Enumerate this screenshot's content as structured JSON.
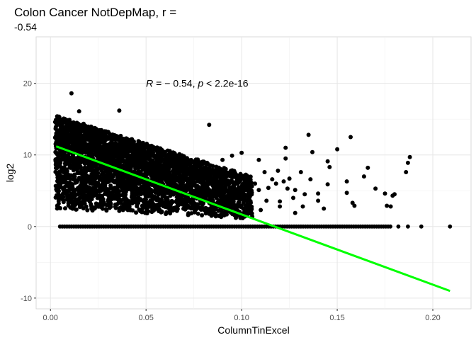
{
  "chart_data": {
    "type": "scatter",
    "title_line1": "Colon Cancer NotDepMap, r =",
    "title_line2": "-0.54",
    "xlabel": "ColumnTinExcel",
    "ylabel": "log2",
    "xlim": [
      -0.0075,
      0.22
    ],
    "ylim": [
      -11.5,
      26.5
    ],
    "x_ticks": [
      0.0,
      0.05,
      0.1,
      0.15,
      0.2
    ],
    "x_tick_labels": [
      "0.00",
      "0.05",
      "0.10",
      "0.15",
      "0.20"
    ],
    "y_ticks": [
      -10,
      0,
      10,
      20
    ],
    "y_tick_labels": [
      "-10",
      "0",
      "10",
      "20"
    ],
    "grid": true,
    "annotation": {
      "x": 0.05,
      "y": 20,
      "r_symbol": "R",
      "r_text": " = − 0.54, ",
      "p_symbol": "p",
      "p_text": " < 2.2e-16"
    },
    "fit_line": {
      "color": "#00ff00",
      "x": [
        0.003,
        0.209
      ],
      "y": [
        11.2,
        -9.0
      ]
    },
    "point_color": "#000000",
    "points": [
      [
        0.011,
        18.6
      ],
      [
        0.015,
        16.1
      ],
      [
        0.036,
        16.2
      ],
      [
        0.083,
        14.2
      ],
      [
        0.135,
        12.8
      ],
      [
        0.157,
        12.5
      ],
      [
        0.123,
        11.0
      ],
      [
        0.137,
        10.4
      ],
      [
        0.15,
        10.8
      ],
      [
        0.188,
        9.7
      ],
      [
        0.145,
        9.1
      ],
      [
        0.123,
        9.5
      ],
      [
        0.146,
        8.3
      ],
      [
        0.166,
        8.2
      ],
      [
        0.186,
        7.6
      ],
      [
        0.155,
        6.3
      ],
      [
        0.145,
        5.9
      ],
      [
        0.14,
        4.6
      ],
      [
        0.155,
        4.7
      ],
      [
        0.17,
        5.3
      ],
      [
        0.175,
        4.6
      ],
      [
        0.18,
        4.5
      ],
      [
        0.179,
        4.3
      ],
      [
        0.176,
        2.9
      ],
      [
        0.158,
        3.3
      ],
      [
        0.159,
        2.9
      ],
      [
        0.132,
        2.8
      ],
      [
        0.14,
        3.6
      ],
      [
        0.143,
        2.5
      ],
      [
        0.113,
        3.6
      ],
      [
        0.12,
        3.5
      ],
      [
        0.127,
        4.0
      ],
      [
        0.109,
        5.1
      ],
      [
        0.12,
        2.8
      ],
      [
        0.128,
        1.9
      ],
      [
        0.105,
        2.5
      ],
      [
        0.098,
        2.8
      ],
      [
        0.11,
        2.3
      ],
      [
        0.109,
        9.3
      ],
      [
        0.112,
        7.6
      ],
      [
        0.116,
        6.6
      ],
      [
        0.104,
        5.5
      ],
      [
        0.114,
        5.4
      ],
      [
        0.124,
        5.3
      ],
      [
        0.128,
        5.1
      ],
      [
        0.133,
        4.5
      ],
      [
        0.101,
        6.8
      ],
      [
        0.107,
        6.0
      ],
      [
        0.131,
        7.6
      ],
      [
        0.136,
        6.6
      ],
      [
        0.119,
        7.8
      ],
      [
        0.122,
        6.3
      ],
      [
        0.118,
        6.0
      ],
      [
        0.125,
        6.7
      ],
      [
        0.1,
        10.3
      ],
      [
        0.095,
        9.9
      ],
      [
        0.092,
        7.0
      ],
      [
        0.09,
        9.3
      ],
      [
        0.098,
        6.0
      ],
      [
        0.086,
        4.7
      ],
      [
        0.088,
        5.8
      ],
      [
        0.096,
        5.0
      ],
      [
        0.178,
        2.8
      ],
      [
        0.164,
        7.0
      ],
      [
        0.187,
        8.9
      ]
    ],
    "zero_row": {
      "y": 0,
      "x_start": 0.005,
      "x_end": 0.178,
      "extra_x": [
        0.182,
        0.187,
        0.194,
        0.209
      ]
    },
    "dense_band": {
      "x_start": 0.003,
      "x_end": 0.105,
      "upper_start": 15.5,
      "upper_end": 7.0,
      "lower_start": 2.5,
      "lower_end": 1.0
    }
  }
}
